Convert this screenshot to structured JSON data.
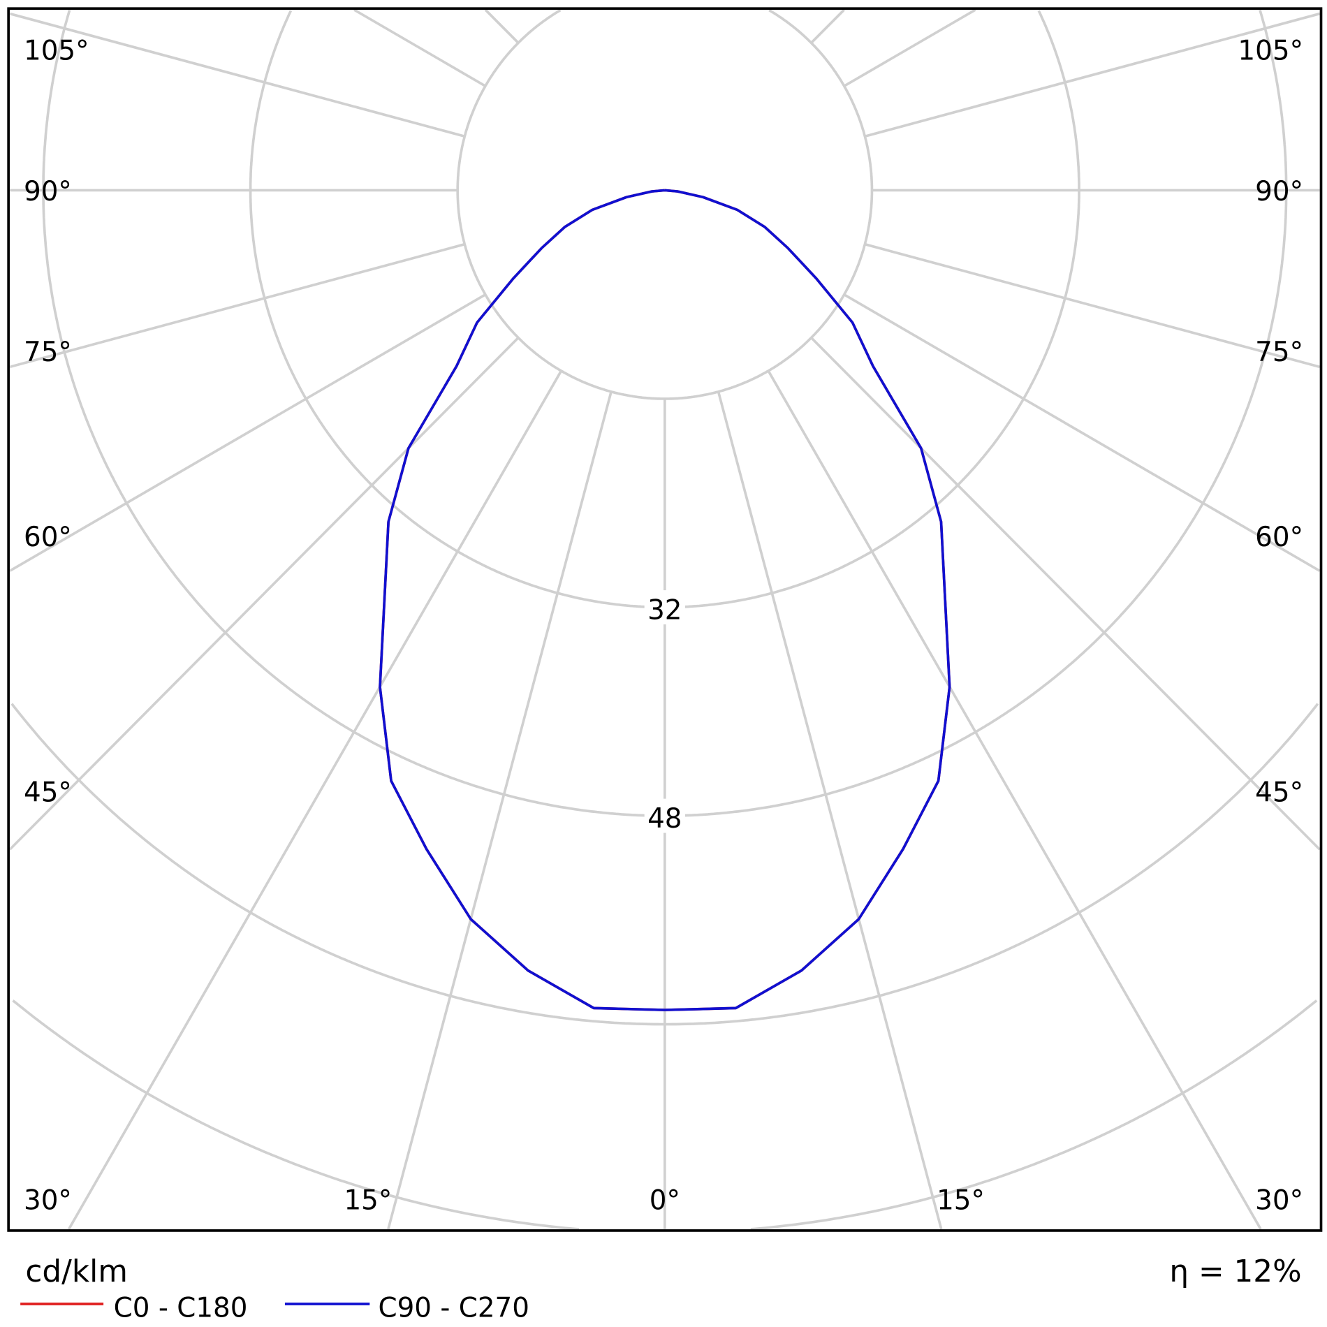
{
  "chart_data": {
    "type": "polar-line",
    "unit_label": "cd/klm",
    "efficiency_label": "η = 12%",
    "ring_values": [
      16,
      32,
      48,
      64,
      80
    ],
    "ring_labels": [
      "32",
      "48"
    ],
    "angle_labels": {
      "left": [
        "105°",
        "90°",
        "75°",
        "60°",
        "45°",
        "30°"
      ],
      "bottom": [
        "15°",
        "0°",
        "15°"
      ],
      "right": [
        "105°",
        "90°",
        "75°",
        "60°",
        "45°",
        "30°"
      ]
    },
    "angles_deg": [
      0,
      5,
      10,
      15,
      20,
      25,
      30,
      35,
      40,
      45,
      50,
      55,
      60,
      65,
      70,
      75,
      80,
      85,
      90
    ],
    "series": [
      {
        "name": "C0 - C180",
        "color": "#e02020",
        "values": [
          62.9,
          63.0,
          60.8,
          57.9,
          53.8,
          50.0,
          44.0,
          37.7,
          33.2,
          28.0,
          21.0,
          17.7,
          13.5,
          10.5,
          8.2,
          5.8,
          3.0,
          1.0,
          0
        ]
      },
      {
        "name": "C90 - C270",
        "color": "#1010d0",
        "values": [
          62.9,
          63.0,
          60.8,
          57.9,
          53.8,
          50.0,
          44.0,
          37.7,
          33.2,
          28.0,
          21.0,
          17.7,
          13.5,
          10.5,
          8.2,
          5.8,
          3.0,
          1.0,
          0
        ]
      }
    ],
    "grid": true,
    "legend": "bottom-left"
  }
}
